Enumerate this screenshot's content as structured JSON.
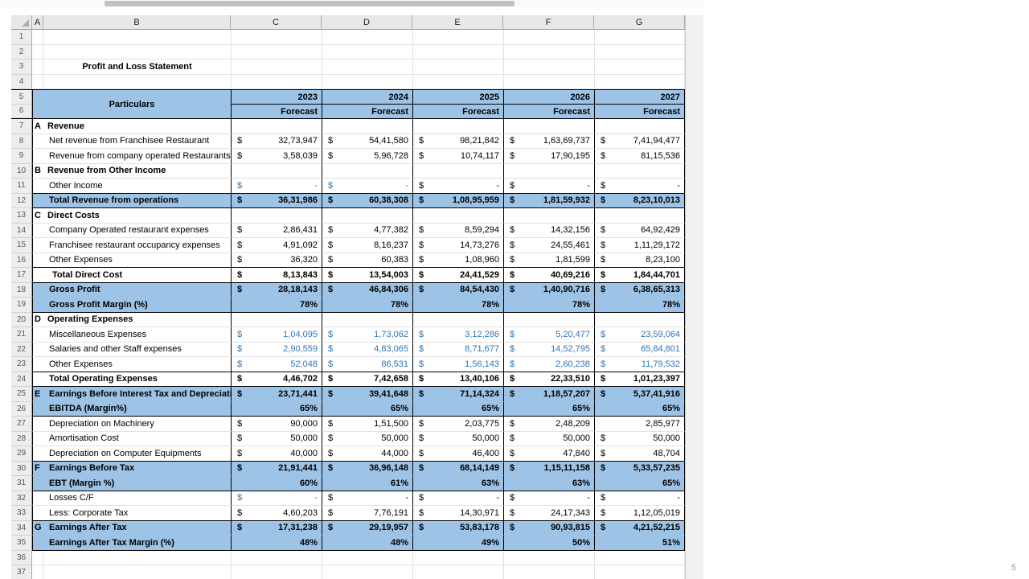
{
  "meta": {
    "page_badge": "5"
  },
  "colors": {
    "highlight": "#9DC3E6",
    "blue_text": "#2E75B6"
  },
  "sheet": {
    "title": "Profit and Loss Statement",
    "column_letters": [
      "A",
      "B",
      "C",
      "D",
      "E",
      "F",
      "G"
    ],
    "header": {
      "particulars": "Particulars",
      "years": [
        "2023",
        "2024",
        "2025",
        "2026",
        "2027"
      ],
      "forecast_label": "Forecast",
      "header_row_numbers": [
        "5",
        "6"
      ]
    },
    "rows_top": [
      {
        "n": 1,
        "kind": "empty"
      },
      {
        "n": 2,
        "kind": "empty"
      },
      {
        "n": 3,
        "kind": "title"
      },
      {
        "n": 4,
        "kind": "empty"
      }
    ],
    "rows_main": [
      {
        "n": 7,
        "kind": "section",
        "sec": "A",
        "label": "Revenue",
        "ind": 0
      },
      {
        "n": 8,
        "kind": "item",
        "label": "Net revenue from Franchisee Restaurant",
        "vals": [
          "32,73,947",
          "54,41,580",
          "98,21,842",
          "1,63,69,737",
          "7,41,94,477"
        ]
      },
      {
        "n": 9,
        "kind": "item",
        "label": "Revenue from company operated Restaurants",
        "vals": [
          "3,58,039",
          "5,96,728",
          "10,74,117",
          "17,90,195",
          "81,15,536"
        ]
      },
      {
        "n": 10,
        "kind": "section",
        "sec": "B",
        "label": "Revenue from Other Income",
        "ind": 0
      },
      {
        "n": 11,
        "kind": "item",
        "label": "Other Income",
        "vals": [
          "-",
          "-",
          "-",
          "-",
          "-"
        ],
        "blueCols": [
          0,
          1
        ],
        "bb": true
      },
      {
        "n": 12,
        "kind": "total",
        "hl": true,
        "label": "Total Revenue from operations",
        "vals": [
          "36,31,986",
          "60,38,308",
          "1,08,95,959",
          "1,81,59,932",
          "8,23,10,013"
        ],
        "bb": true
      },
      {
        "n": 13,
        "kind": "section",
        "sec": "C",
        "label": "Direct Costs",
        "ind": 0
      },
      {
        "n": 14,
        "kind": "item",
        "label": "Company Operated restaurant expenses",
        "vals": [
          "2,86,431",
          "4,77,382",
          "8,59,294",
          "14,32,156",
          "64,92,429"
        ]
      },
      {
        "n": 15,
        "kind": "item",
        "label": "Franchisee restaurant occupancy expenses",
        "vals": [
          "4,91,092",
          "8,16,237",
          "14,73,276",
          "24,55,461",
          "1,11,29,172"
        ]
      },
      {
        "n": 16,
        "kind": "item",
        "label": "Other Expenses",
        "vals": [
          "36,320",
          "60,383",
          "1,08,960",
          "1,81,599",
          "8,23,100"
        ],
        "bb": true
      },
      {
        "n": 17,
        "kind": "total",
        "label": "Total Direct Cost",
        "ind": 2,
        "vals": [
          "8,13,843",
          "13,54,003",
          "24,41,529",
          "40,69,216",
          "1,84,44,701"
        ],
        "bb": true
      },
      {
        "n": 18,
        "kind": "total",
        "hl": true,
        "label": "Gross Profit",
        "vals": [
          "28,18,143",
          "46,84,306",
          "84,54,430",
          "1,40,90,716",
          "6,38,65,313"
        ]
      },
      {
        "n": 19,
        "kind": "pct",
        "hl": true,
        "label": "Gross Profit Margin (%)",
        "vals": [
          "78%",
          "78%",
          "78%",
          "78%",
          "78%"
        ],
        "bb": true
      },
      {
        "n": 20,
        "kind": "section",
        "sec": "D",
        "label": "Operating Expenses",
        "ind": 0
      },
      {
        "n": 21,
        "kind": "item",
        "label": "Miscellaneous Expenses",
        "vals": [
          "1,04,095",
          "1,73,062",
          "3,12,286",
          "5,20,477",
          "23,59,064"
        ],
        "blueCols": [
          0,
          1,
          2,
          3,
          4
        ]
      },
      {
        "n": 22,
        "kind": "item",
        "label": "Salaries and other Staff expenses",
        "vals": [
          "2,90,559",
          "4,83,065",
          "8,71,677",
          "14,52,795",
          "65,84,801"
        ],
        "blueCols": [
          0,
          1,
          2,
          3,
          4
        ]
      },
      {
        "n": 23,
        "kind": "item",
        "label": "Other Expenses",
        "vals": [
          "52,048",
          "86,531",
          "1,56,143",
          "2,60,238",
          "11,79,532"
        ],
        "blueCols": [
          0,
          1,
          2,
          3,
          4
        ],
        "bb": true
      },
      {
        "n": 24,
        "kind": "total",
        "label": "Total Operating Expenses",
        "vals": [
          "4,46,702",
          "7,42,658",
          "13,40,106",
          "22,33,510",
          "1,01,23,397"
        ],
        "bb": true
      },
      {
        "n": 25,
        "kind": "total",
        "hl": true,
        "sec": "E",
        "label": "Earnings Before Interest Tax and Depreciation",
        "vals": [
          "23,71,441",
          "39,41,648",
          "71,14,324",
          "1,18,57,207",
          "5,37,41,916"
        ]
      },
      {
        "n": 26,
        "kind": "pct",
        "hl": true,
        "label": "EBITDA (Margin%)",
        "vals": [
          "65%",
          "65%",
          "65%",
          "65%",
          "65%"
        ],
        "bb": true
      },
      {
        "n": 27,
        "kind": "item",
        "label": "Depreciation on Machinery",
        "vals": [
          "90,000",
          "1,51,500",
          "2,03,775",
          "2,48,209",
          "2,85,977"
        ],
        "noDollar": [
          4
        ]
      },
      {
        "n": 28,
        "kind": "item",
        "label": "Amortisation Cost",
        "vals": [
          "50,000",
          "50,000",
          "50,000",
          "50,000",
          "50,000"
        ]
      },
      {
        "n": 29,
        "kind": "item",
        "label": "Depreciation on Computer Equipments",
        "vals": [
          "40,000",
          "44,000",
          "46,400",
          "47,840",
          "48,704"
        ],
        "bb": true
      },
      {
        "n": 30,
        "kind": "total",
        "hl": true,
        "sec": "F",
        "label": "Earnings Before Tax",
        "vals": [
          "21,91,441",
          "36,96,148",
          "68,14,149",
          "1,15,11,158",
          "5,33,57,235"
        ]
      },
      {
        "n": 31,
        "kind": "pct",
        "hl": true,
        "label": "EBT (Margin %)",
        "vals": [
          "60%",
          "61%",
          "63%",
          "63%",
          "65%"
        ],
        "bb": true
      },
      {
        "n": 32,
        "kind": "item",
        "label": "Losses C/F",
        "vals": [
          "-",
          "-",
          "-",
          "-",
          "-"
        ],
        "blueCols": [
          0
        ]
      },
      {
        "n": 33,
        "kind": "item",
        "label": "Less: Corporate Tax",
        "vals": [
          "4,60,203",
          "7,76,191",
          "14,30,971",
          "24,17,343",
          "1,12,05,019"
        ],
        "bb": true
      },
      {
        "n": 34,
        "kind": "total",
        "hl": true,
        "sec": "G",
        "label": "Earnings After Tax",
        "vals": [
          "17,31,238",
          "29,19,957",
          "53,83,178",
          "90,93,815",
          "4,21,52,215"
        ]
      },
      {
        "n": 35,
        "kind": "pct",
        "hl": true,
        "label": "Earnings After Tax Margin (%)",
        "vals": [
          "48%",
          "48%",
          "49%",
          "50%",
          "51%"
        ],
        "bb": true
      },
      {
        "n": 36,
        "kind": "empty"
      },
      {
        "n": 37,
        "kind": "empty"
      }
    ]
  }
}
